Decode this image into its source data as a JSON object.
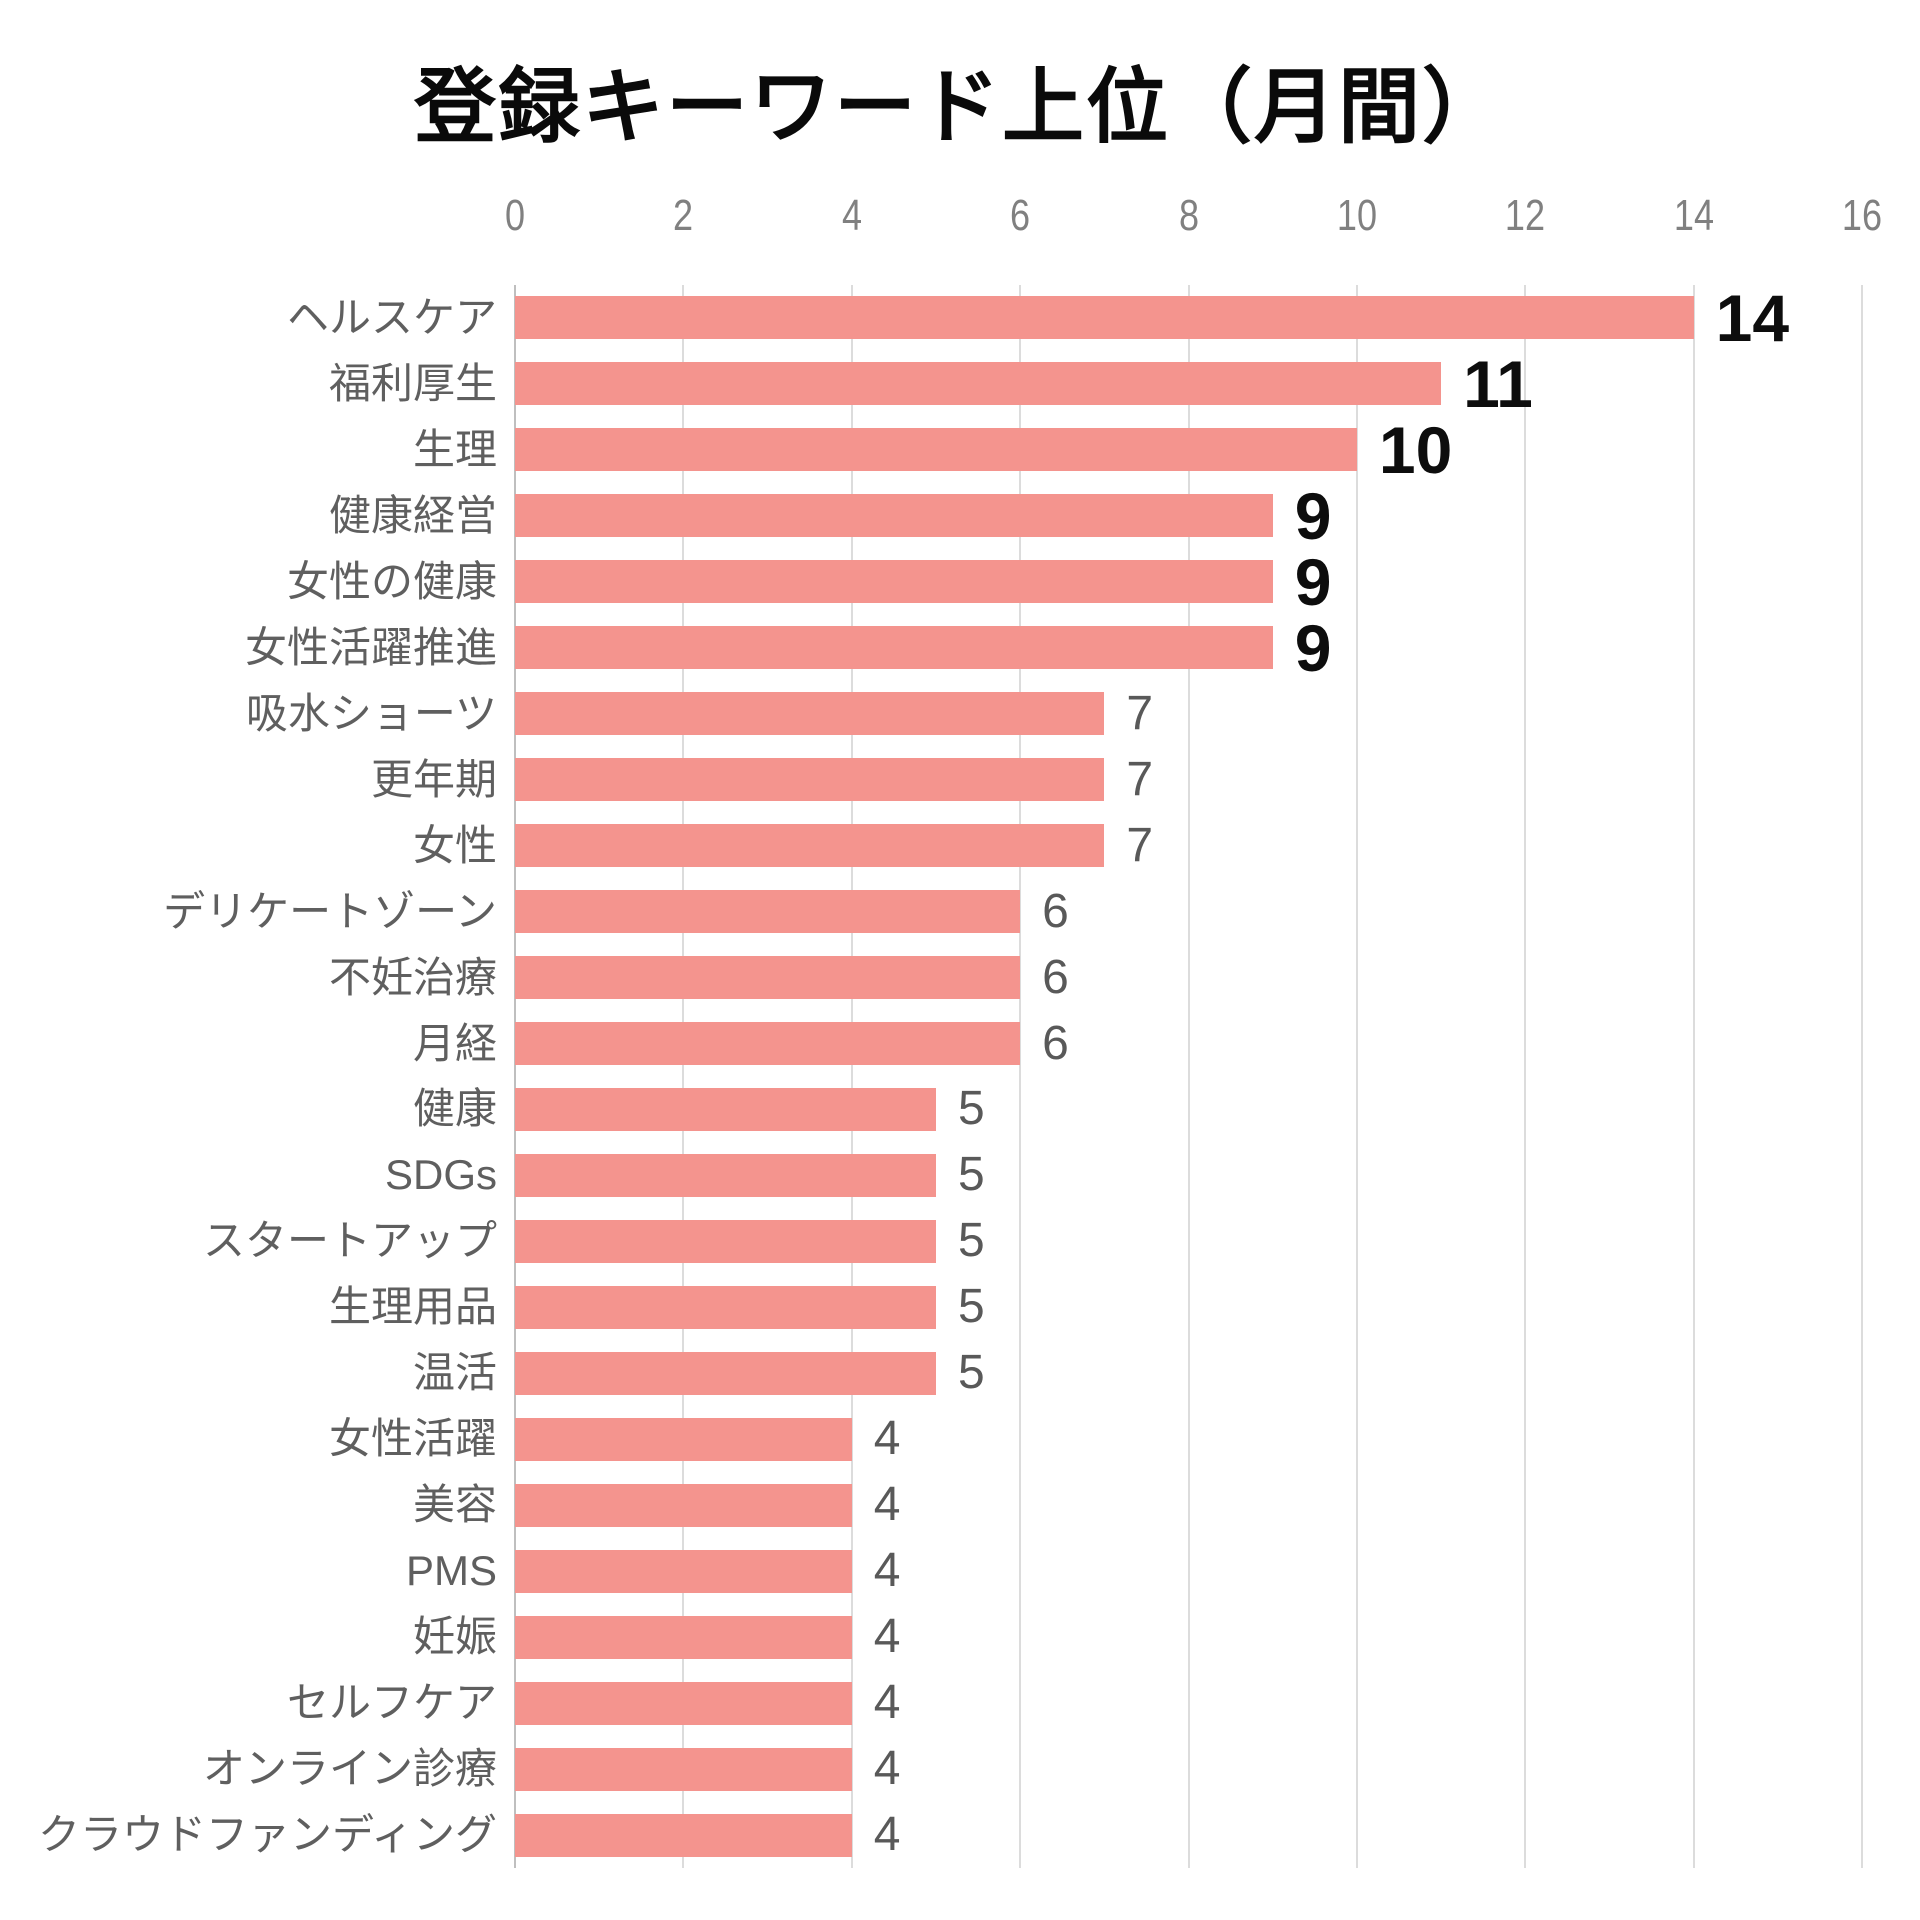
{
  "title": "登録キーワード上位（月間）",
  "colors": {
    "bar": "#f4948e",
    "gridline": "#dcdcdc",
    "axis_line": "#bfbfbf",
    "tick_text": "#808080",
    "category_text": "#5f5f5f",
    "value_text": "#595959",
    "value_text_emphasized": "#0d0d0d",
    "title_text": "#0a0a0a",
    "background": "#ffffff"
  },
  "chart_data": {
    "type": "bar",
    "orientation": "horizontal",
    "title": "登録キーワード上位（月間）",
    "xlabel": "",
    "ylabel": "",
    "xlim": [
      0,
      16
    ],
    "x_ticks": [
      0,
      2,
      4,
      6,
      8,
      10,
      12,
      14,
      16
    ],
    "grid": true,
    "legend": false,
    "categories": [
      "ヘルスケア",
      "福利厚生",
      "生理",
      "健康経営",
      "女性の健康",
      "女性活躍推進",
      "吸水ショーツ",
      "更年期",
      "女性",
      "デリケートゾーン",
      "不妊治療",
      "月経",
      "健康",
      "SDGs",
      "スタートアップ",
      "生理用品",
      "温活",
      "女性活躍",
      "美容",
      "PMS",
      "妊娠",
      "セルフケア",
      "オンライン診療",
      "クラウドファンディング"
    ],
    "values": [
      14,
      11,
      10,
      9,
      9,
      9,
      7,
      7,
      7,
      6,
      6,
      6,
      5,
      5,
      5,
      5,
      5,
      4,
      4,
      4,
      4,
      4,
      4,
      4
    ],
    "value_labels": [
      "14",
      "11",
      "10",
      "9",
      "9",
      "9",
      "7",
      "7",
      "7",
      "6",
      "6",
      "6",
      "5",
      "5",
      "5",
      "5",
      "5",
      "4",
      "4",
      "4",
      "4",
      "4",
      "4",
      "4"
    ],
    "emphasized_value_indices": [
      0,
      1,
      2,
      3,
      4,
      5
    ]
  }
}
